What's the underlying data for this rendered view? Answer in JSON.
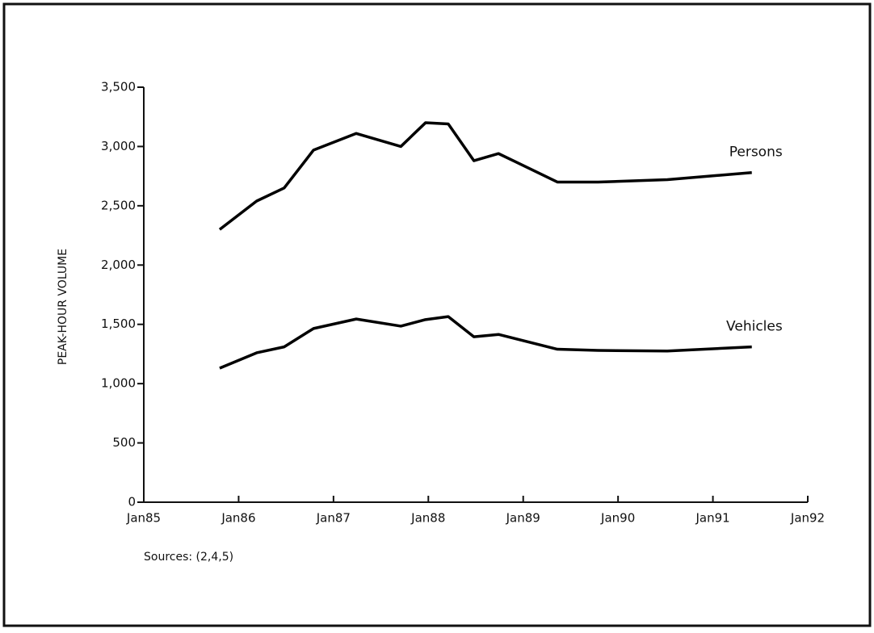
{
  "chart_data": {
    "type": "line",
    "ylabel": "PEAK-HOUR VOLUME",
    "annotation": "Sources:  (2,4,5)",
    "x": [
      1985.8,
      1986.19,
      1986.48,
      1986.79,
      1987.24,
      1987.71,
      1987.97,
      1988.21,
      1988.48,
      1988.74,
      1989.36,
      1989.79,
      1990.52,
      1991.41
    ],
    "series": [
      {
        "name": "Persons",
        "color": "#000000",
        "values": [
          2300,
          2540,
          2650,
          2970,
          3110,
          3000,
          3200,
          3190,
          2880,
          2940,
          2700,
          2700,
          2720,
          2780
        ]
      },
      {
        "name": "Vehicles",
        "color": "#000000",
        "values": [
          1130,
          1260,
          1310,
          1465,
          1545,
          1485,
          1540,
          1565,
          1395,
          1415,
          1290,
          1280,
          1275,
          1310
        ]
      }
    ],
    "xlim": [
      1985,
      1992
    ],
    "xticks": [
      {
        "value": 1985,
        "label": "Jan85"
      },
      {
        "value": 1986,
        "label": "Jan86"
      },
      {
        "value": 1987,
        "label": "Jan87"
      },
      {
        "value": 1988,
        "label": "Jan88"
      },
      {
        "value": 1989,
        "label": "Jan89"
      },
      {
        "value": 1990,
        "label": "Jan90"
      },
      {
        "value": 1991,
        "label": "Jan91"
      },
      {
        "value": 1992,
        "label": "Jan92"
      }
    ],
    "ylim": [
      0,
      3500
    ],
    "yticks": [
      0,
      500,
      {
        "value": 1000,
        "label": "1,000"
      },
      {
        "value": 1500,
        "label": "1,500"
      },
      {
        "value": 2000,
        "label": "2,000"
      },
      {
        "value": 2500,
        "label": "2,500"
      },
      {
        "value": 3000,
        "label": "3,000"
      },
      {
        "value": 3500,
        "label": "3,500"
      }
    ],
    "grid": false
  }
}
